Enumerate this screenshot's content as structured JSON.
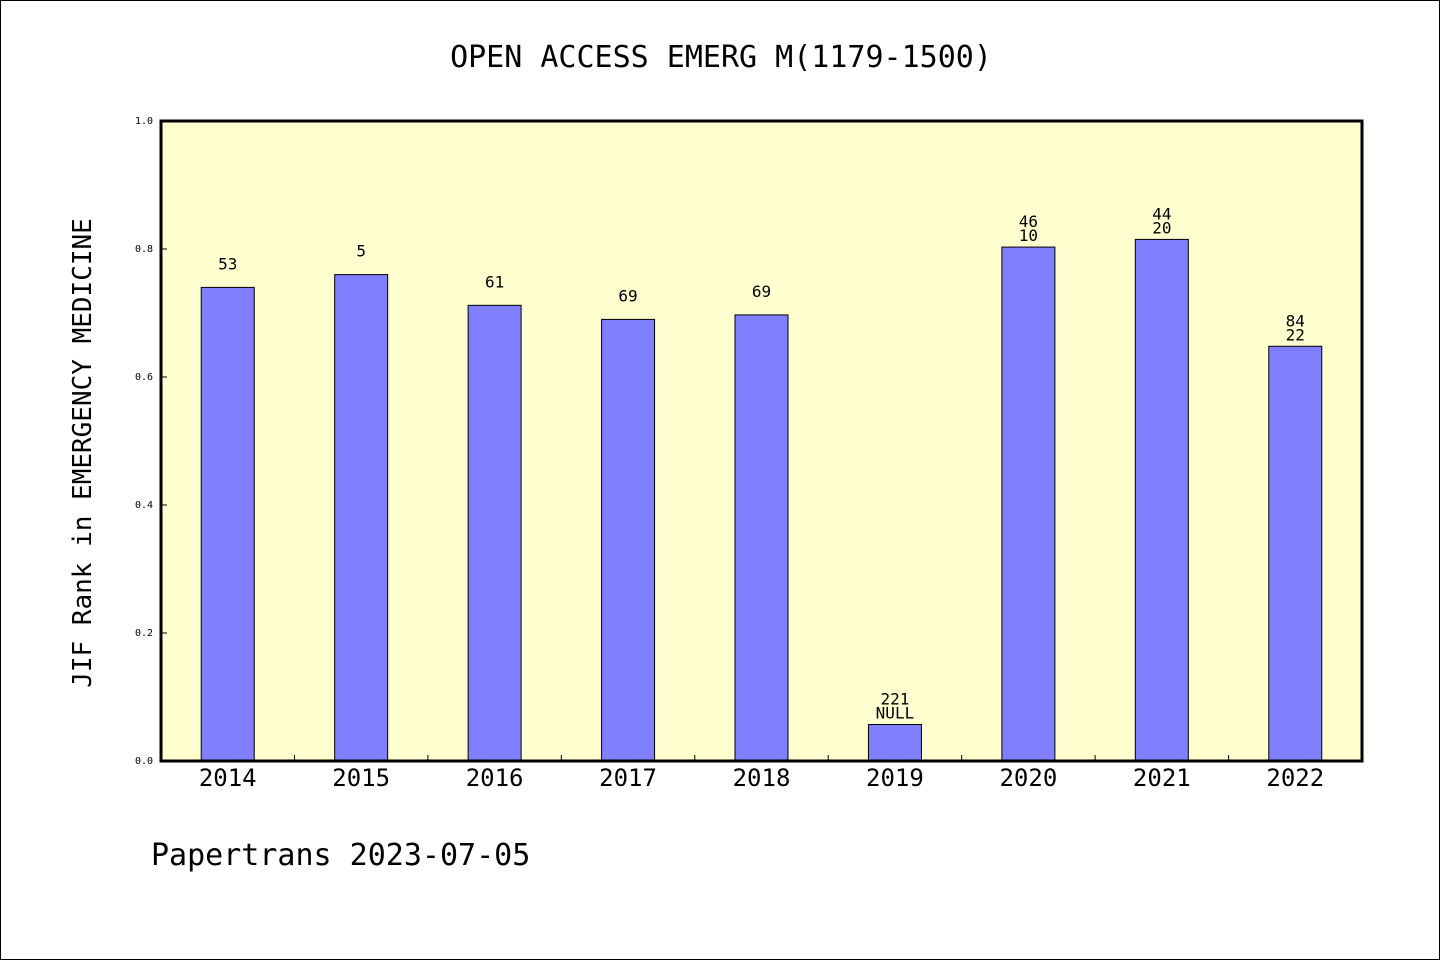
{
  "chart_data": {
    "type": "bar",
    "title": "OPEN ACCESS EMERG M(1179-1500)",
    "ylabel": "JIF Rank in EMERGENCY MEDICINE",
    "xlabel": "",
    "categories": [
      "2014",
      "2015",
      "2016",
      "2017",
      "2018",
      "2019",
      "2020",
      "2021",
      "2022"
    ],
    "values": [
      0.74,
      0.76,
      0.712,
      0.69,
      0.697,
      0.057,
      0.803,
      0.815,
      0.648
    ],
    "bar_labels": [
      [
        "53"
      ],
      [
        "5"
      ],
      [
        "61"
      ],
      [
        "69"
      ],
      [
        "69"
      ],
      [
        "221",
        "NULL"
      ],
      [
        "46",
        "10"
      ],
      [
        "44",
        "20"
      ],
      [
        "84",
        "22"
      ]
    ],
    "ylim": [
      0,
      1.0
    ],
    "yticks": [
      "0.0",
      "0.2",
      "0.4",
      "0.6",
      "0.8",
      "1.0"
    ],
    "grid": false,
    "plot_background": "#ffffd0",
    "bar_color": "#8080ff"
  },
  "footer": "Papertrans 2023-07-05"
}
